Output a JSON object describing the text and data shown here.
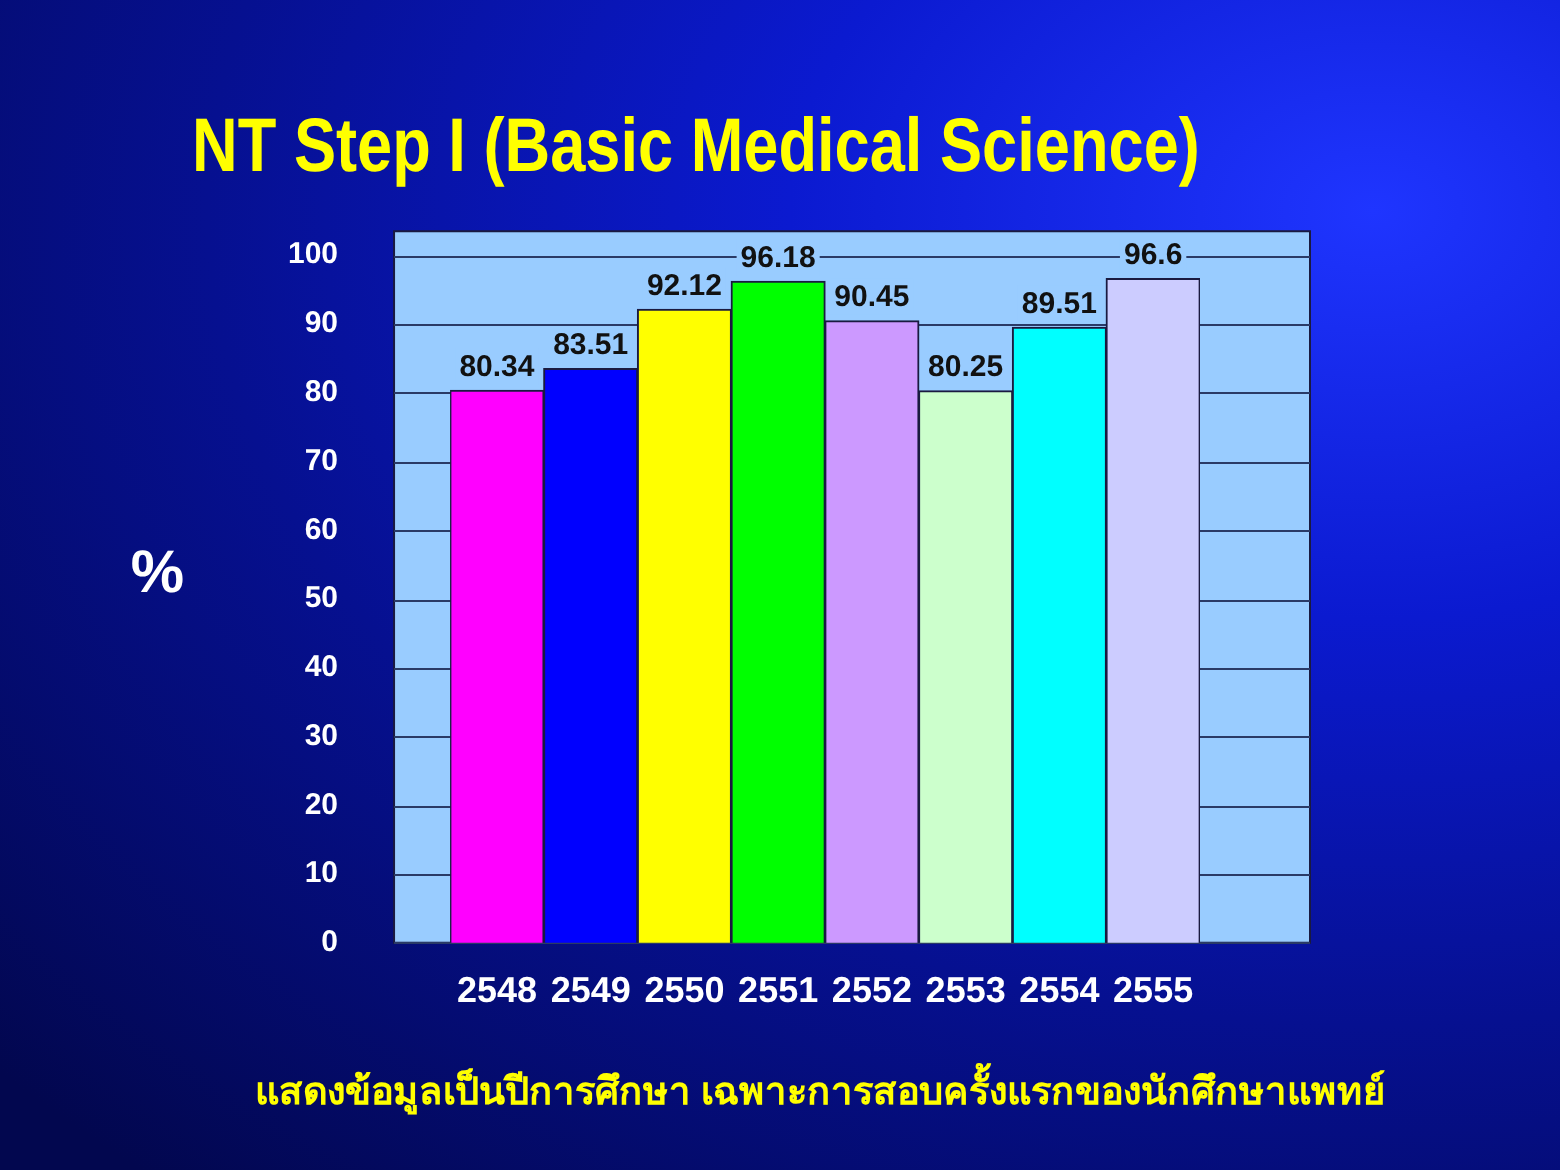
{
  "chart_data": {
    "type": "bar",
    "title": "NT Step I (Basic Medical Science)",
    "ylabel": "%",
    "categories": [
      "2548",
      "2549",
      "2550",
      "2551",
      "2552",
      "2553",
      "2554",
      "2555"
    ],
    "values": [
      80.34,
      83.51,
      92.12,
      96.18,
      90.45,
      80.25,
      89.51,
      96.6
    ],
    "colors": [
      "#ff00ff",
      "#0000ff",
      "#ffff00",
      "#00ff00",
      "#cc99ff",
      "#ccffcc",
      "#00ffff",
      "#ccccff"
    ],
    "ylim": [
      0,
      100
    ],
    "yticks": [
      0,
      10,
      20,
      30,
      40,
      50,
      60,
      70,
      80,
      90,
      100
    ],
    "grid": "y",
    "data_labels": true,
    "annotations": [
      "แสดงข้อมูลเป็นปีการศึกษา เฉพาะการสอบครั้งแรกของนักศึกษาแพทย์"
    ]
  }
}
